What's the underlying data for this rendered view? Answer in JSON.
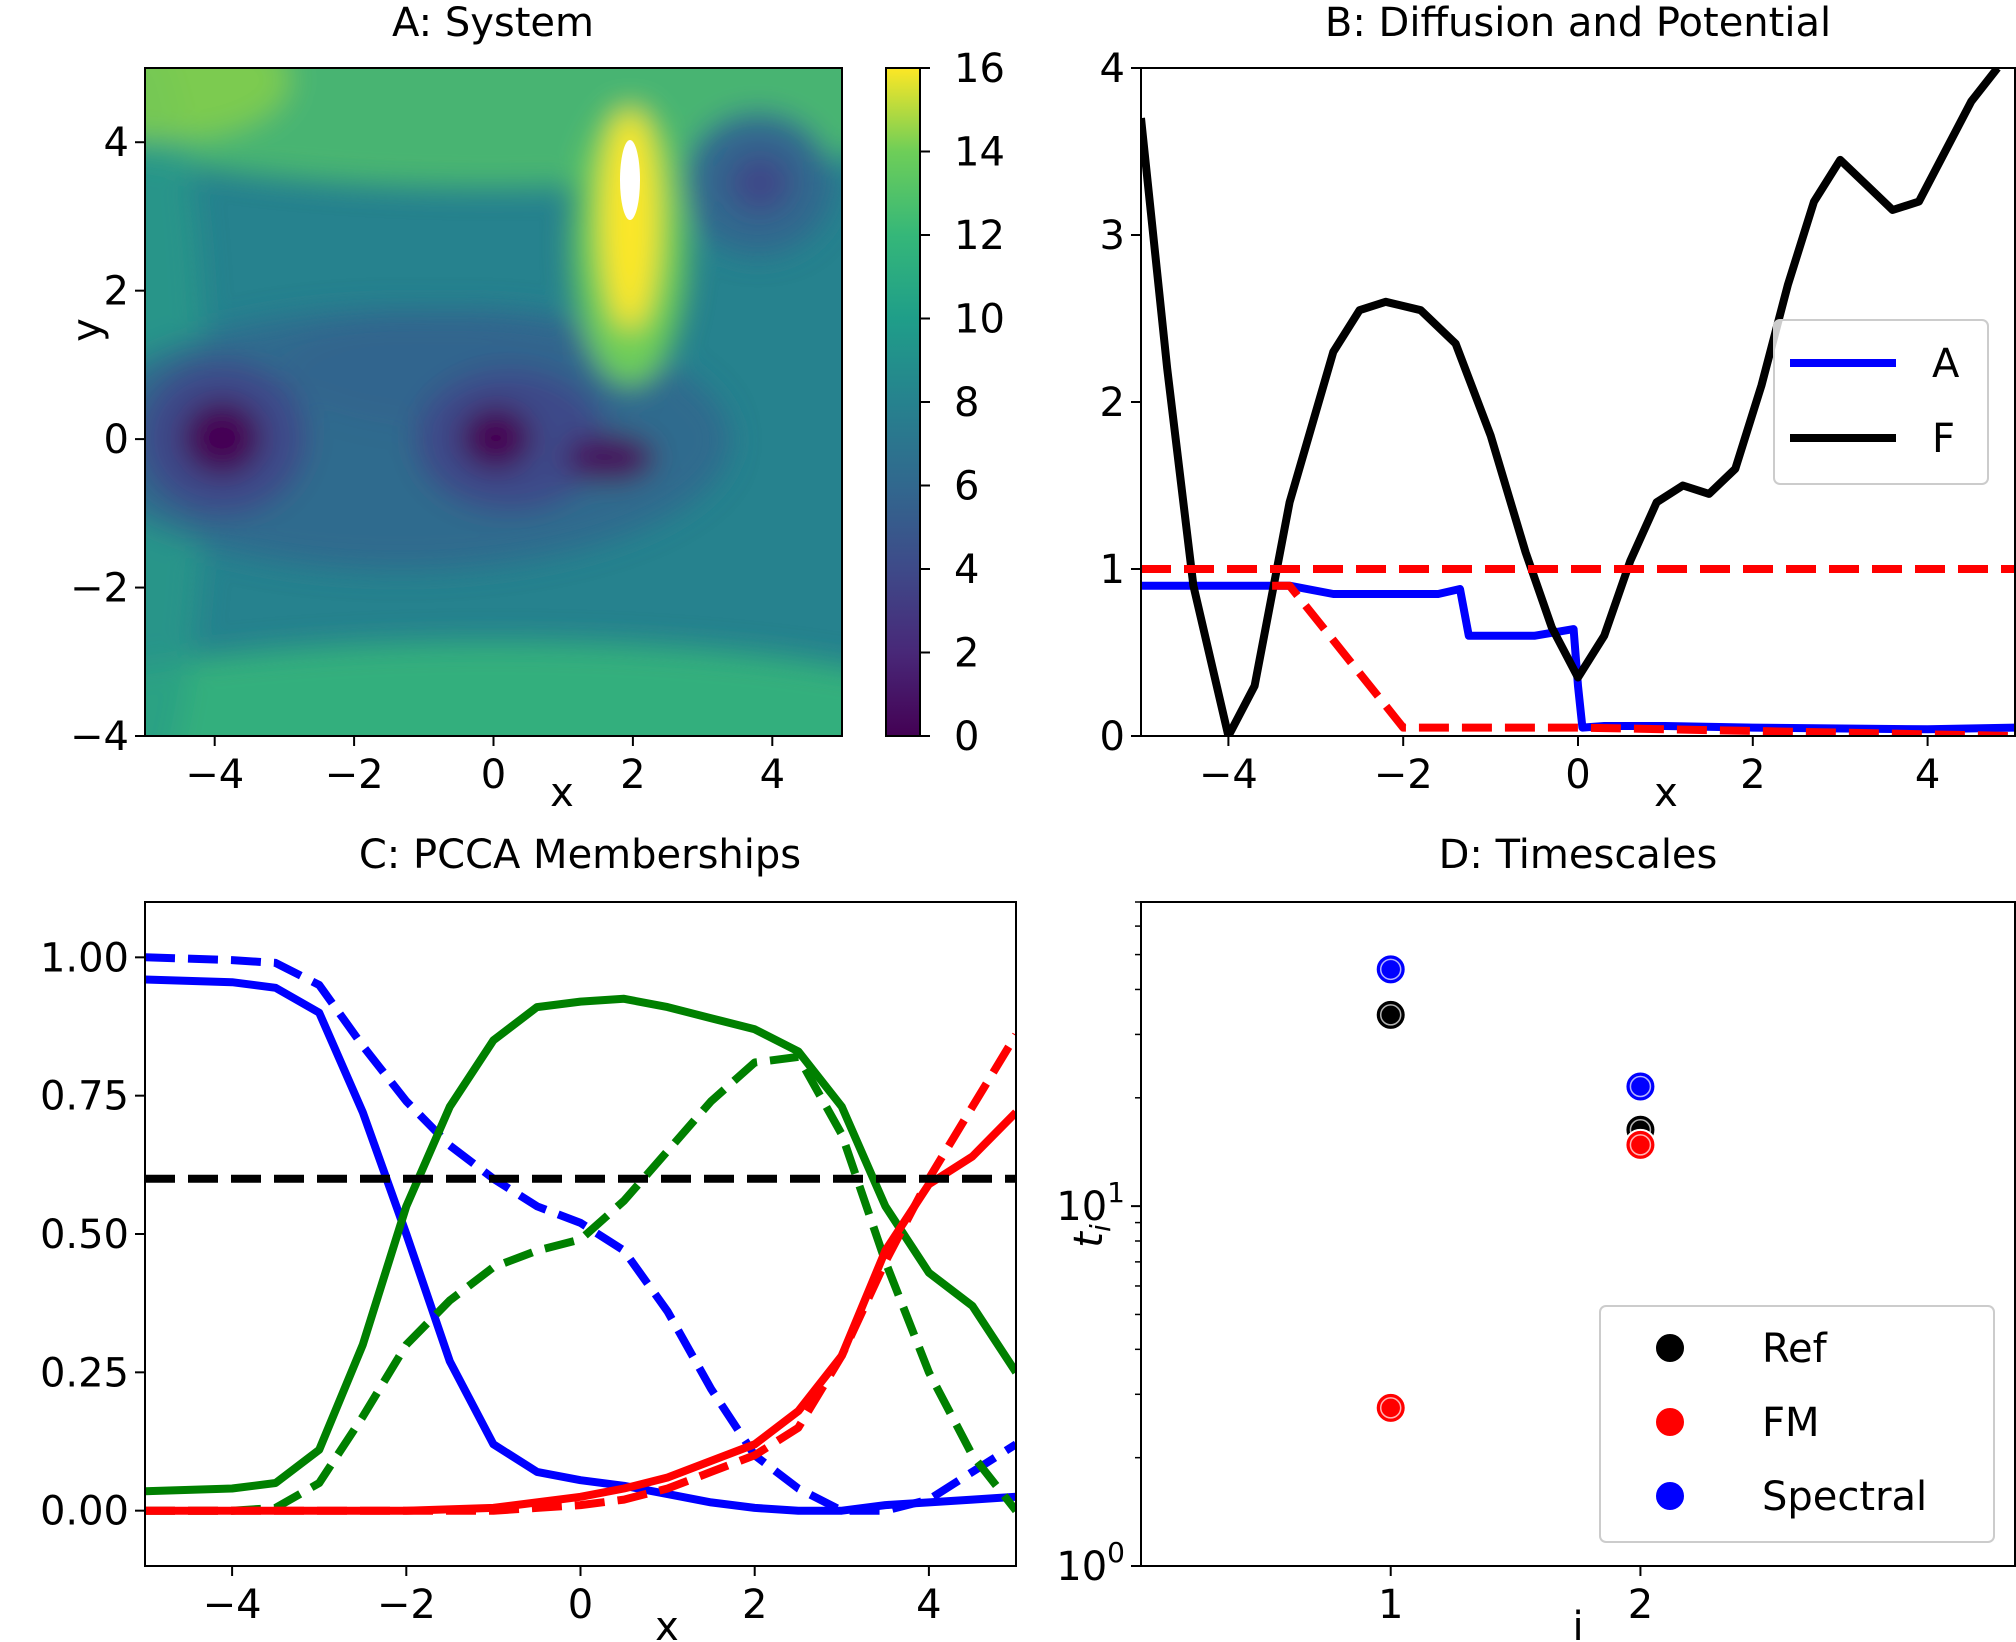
{
  "chart_data": [
    {
      "panel": "A",
      "type": "heatmap",
      "title": "A: System",
      "xlabel": "x",
      "ylabel": "y",
      "xlim": [
        -5,
        5
      ],
      "ylim": [
        -4,
        5
      ],
      "xticks": [
        "−4",
        "−2",
        "0",
        "2",
        "4"
      ],
      "yticks": [
        "−4",
        "−2",
        "0",
        "2",
        "4"
      ],
      "colorbar": {
        "min": 0,
        "max": 16,
        "ticks": [
          "0",
          "2",
          "4",
          "6",
          "8",
          "10",
          "12",
          "14",
          "16"
        ],
        "colormap": "viridis"
      },
      "minima": [
        {
          "x": -3.9,
          "y": 0.0,
          "value": 0.3
        },
        {
          "x": 0.0,
          "y": 0.0,
          "value": 0.5
        },
        {
          "x": 1.7,
          "y": -0.3,
          "value": 1.0
        },
        {
          "x": 3.8,
          "y": 3.4,
          "value": 3.5
        }
      ],
      "maximum": {
        "x": 2.0,
        "y": 3.3,
        "value": 16
      }
    },
    {
      "panel": "B",
      "type": "line",
      "title": "B: Diffusion and Potential",
      "xlabel": "x",
      "xlim": [
        -5,
        5
      ],
      "ylim": [
        0,
        4
      ],
      "xticks": [
        "−4",
        "−2",
        "0",
        "2",
        "4"
      ],
      "yticks": [
        "0",
        "1",
        "2",
        "3",
        "4"
      ],
      "legend": {
        "placement": "center-right",
        "entries": [
          "A",
          "F"
        ]
      },
      "series": [
        {
          "name": "A",
          "color": "#0000ff",
          "style": "solid",
          "x": [
            -5,
            -3.3,
            -2.8,
            -1.6,
            -1.35,
            -1.25,
            -1.0,
            -0.5,
            -0.05,
            0.0,
            0.05,
            0.3,
            1.0,
            2.0,
            4.0,
            5.0
          ],
          "y": [
            0.9,
            0.9,
            0.85,
            0.85,
            0.88,
            0.6,
            0.6,
            0.6,
            0.64,
            0.3,
            0.05,
            0.06,
            0.06,
            0.05,
            0.04,
            0.05
          ]
        },
        {
          "name": "F",
          "color": "#000000",
          "style": "solid",
          "x": [
            -5,
            -4.7,
            -4.4,
            -4.0,
            -3.7,
            -3.3,
            -2.8,
            -2.5,
            -2.2,
            -1.8,
            -1.4,
            -1.0,
            -0.6,
            -0.3,
            0.0,
            0.3,
            0.6,
            0.9,
            1.2,
            1.5,
            1.8,
            2.1,
            2.4,
            2.7,
            3.0,
            3.3,
            3.6,
            3.9,
            4.2,
            4.5,
            4.8
          ],
          "y": [
            3.7,
            2.2,
            0.9,
            0.0,
            0.3,
            1.4,
            2.3,
            2.55,
            2.6,
            2.55,
            2.35,
            1.8,
            1.1,
            0.65,
            0.35,
            0.6,
            1.05,
            1.4,
            1.5,
            1.45,
            1.6,
            2.1,
            2.7,
            3.2,
            3.45,
            3.3,
            3.15,
            3.2,
            3.5,
            3.8,
            4.0
          ]
        },
        {
          "color": "#ff0000",
          "style": "dashed",
          "x": [
            -5,
            5
          ],
          "y": [
            1.0,
            1.0
          ]
        },
        {
          "color": "#ff0000",
          "style": "dashed",
          "x": [
            -3.5,
            -3.3,
            -2.0,
            0.0,
            5.0
          ],
          "y": [
            0.9,
            0.9,
            0.05,
            0.05,
            0.0
          ]
        }
      ]
    },
    {
      "panel": "C",
      "type": "line",
      "title": "C: PCCA Memberships",
      "xlabel": "x",
      "xlim": [
        -5,
        5
      ],
      "ylim": [
        -0.1,
        1.1
      ],
      "xticks": [
        "−4",
        "−2",
        "0",
        "2",
        "4"
      ],
      "yticks": [
        "0.00",
        "0.25",
        "0.50",
        "0.75",
        "1.00"
      ],
      "series": [
        {
          "color": "#0000ff",
          "style": "solid",
          "x": [
            -5,
            -4,
            -3.5,
            -3,
            -2.5,
            -2,
            -1.5,
            -1,
            -0.5,
            0,
            0.5,
            1,
            1.5,
            2,
            2.5,
            3,
            3.5,
            4,
            4.5,
            5
          ],
          "y": [
            0.96,
            0.955,
            0.945,
            0.9,
            0.72,
            0.5,
            0.27,
            0.12,
            0.07,
            0.055,
            0.045,
            0.03,
            0.015,
            0.005,
            0.0,
            0.0,
            0.01,
            0.015,
            0.02,
            0.025
          ]
        },
        {
          "color": "#0000ff",
          "style": "dashed",
          "x": [
            -5,
            -4,
            -3.5,
            -3,
            -2.5,
            -2,
            -1.5,
            -1,
            -0.5,
            0,
            0.5,
            1,
            1.5,
            2,
            2.5,
            3,
            3.5,
            4,
            4.5,
            5
          ],
          "y": [
            1.0,
            0.995,
            0.99,
            0.95,
            0.84,
            0.74,
            0.66,
            0.6,
            0.55,
            0.52,
            0.47,
            0.36,
            0.22,
            0.1,
            0.04,
            0.0,
            0.0,
            0.02,
            0.07,
            0.12
          ]
        },
        {
          "color": "#008000",
          "style": "solid",
          "x": [
            -5,
            -4,
            -3.5,
            -3,
            -2.5,
            -2,
            -1.5,
            -1,
            -0.5,
            0,
            0.5,
            1,
            1.5,
            2,
            2.5,
            3,
            3.5,
            4,
            4.5,
            5
          ],
          "y": [
            0.035,
            0.04,
            0.05,
            0.11,
            0.3,
            0.55,
            0.73,
            0.85,
            0.91,
            0.92,
            0.925,
            0.91,
            0.89,
            0.87,
            0.83,
            0.73,
            0.55,
            0.43,
            0.37,
            0.25
          ]
        },
        {
          "color": "#008000",
          "style": "dashed",
          "x": [
            -5,
            -4,
            -3.5,
            -3,
            -2.5,
            -2,
            -1.5,
            -1,
            -0.5,
            0,
            0.5,
            1,
            1.5,
            2,
            2.5,
            3,
            3.5,
            4,
            4.5,
            5
          ],
          "y": [
            0.0,
            0.0,
            0.005,
            0.05,
            0.17,
            0.3,
            0.38,
            0.44,
            0.47,
            0.49,
            0.56,
            0.65,
            0.74,
            0.81,
            0.82,
            0.68,
            0.45,
            0.25,
            0.1,
            0.0
          ]
        },
        {
          "color": "#ff0000",
          "style": "solid",
          "x": [
            -5,
            -4,
            -3,
            -2,
            -1,
            -0.5,
            0,
            0.5,
            1,
            1.5,
            2,
            2.5,
            3,
            3.5,
            4,
            4.5,
            5
          ],
          "y": [
            0.0,
            0.0,
            0.0,
            0.0,
            0.005,
            0.015,
            0.025,
            0.04,
            0.06,
            0.09,
            0.12,
            0.18,
            0.28,
            0.47,
            0.59,
            0.64,
            0.72
          ]
        },
        {
          "color": "#ff0000",
          "style": "dashed",
          "x": [
            -5,
            -4,
            -3,
            -2,
            -1,
            -0.5,
            0,
            0.5,
            1,
            1.5,
            2,
            2.5,
            3,
            3.5,
            4,
            4.5,
            5
          ],
          "y": [
            0.0,
            0.0,
            0.0,
            0.0,
            0.0,
            0.005,
            0.01,
            0.02,
            0.04,
            0.07,
            0.1,
            0.15,
            0.28,
            0.45,
            0.6,
            0.73,
            0.86
          ]
        },
        {
          "color": "#000000",
          "style": "dashed",
          "x": [
            -5,
            5
          ],
          "y": [
            0.6,
            0.6
          ]
        }
      ]
    },
    {
      "panel": "D",
      "type": "scatter",
      "title": "D: Timescales",
      "xlabel": "i",
      "ylabel": "t_i",
      "ylog": true,
      "xlim": [
        0.0,
        3.5
      ],
      "ylim": [
        1,
        70
      ],
      "xticks": [
        "1",
        "2"
      ],
      "yticks": [
        {
          "base": "10",
          "exp": "0"
        },
        {
          "base": "10",
          "exp": "1"
        }
      ],
      "legend": {
        "placement": "bottom-right",
        "entries": [
          "Ref",
          "FM",
          "Spectral"
        ]
      },
      "series": [
        {
          "name": "Ref",
          "color": "#000000",
          "x": [
            1,
            2
          ],
          "y": [
            34,
            16.3
          ]
        },
        {
          "name": "FM",
          "color": "#ff0000",
          "x": [
            1,
            2
          ],
          "y": [
            2.75,
            14.8
          ]
        },
        {
          "name": "Spectral",
          "color": "#0000ff",
          "x": [
            1,
            2
          ],
          "y": [
            45.5,
            21.5
          ]
        }
      ]
    }
  ]
}
